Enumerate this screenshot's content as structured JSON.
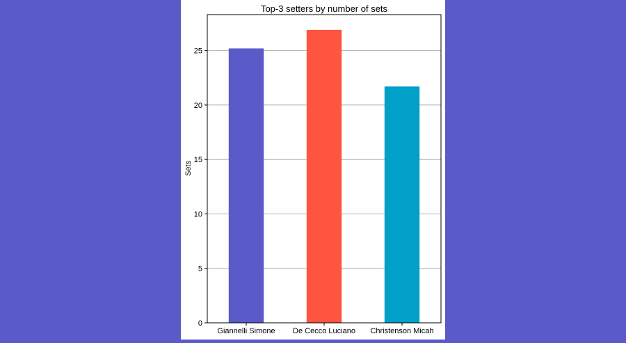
{
  "colors": {
    "page_background": "#5a5ac9",
    "figure_background": "#ffffff",
    "gridline": "#b0b0b0",
    "axis": "#000000"
  },
  "chart_data": {
    "type": "bar",
    "title": "Top-3 setters by number of sets",
    "xlabel": "",
    "ylabel": "Sets",
    "categories": [
      "Giannelli Simone",
      "De Cecco Luciano",
      "Christenson Micah"
    ],
    "values": [
      25.2,
      26.9,
      21.7
    ],
    "bar_colors": [
      "#5a5ac9",
      "#ff5540",
      "#00a0c8"
    ],
    "ylim": [
      0,
      28.3
    ],
    "yticks": [
      0,
      5,
      10,
      15,
      20,
      25
    ],
    "grid": "horizontal",
    "legend": "none"
  }
}
